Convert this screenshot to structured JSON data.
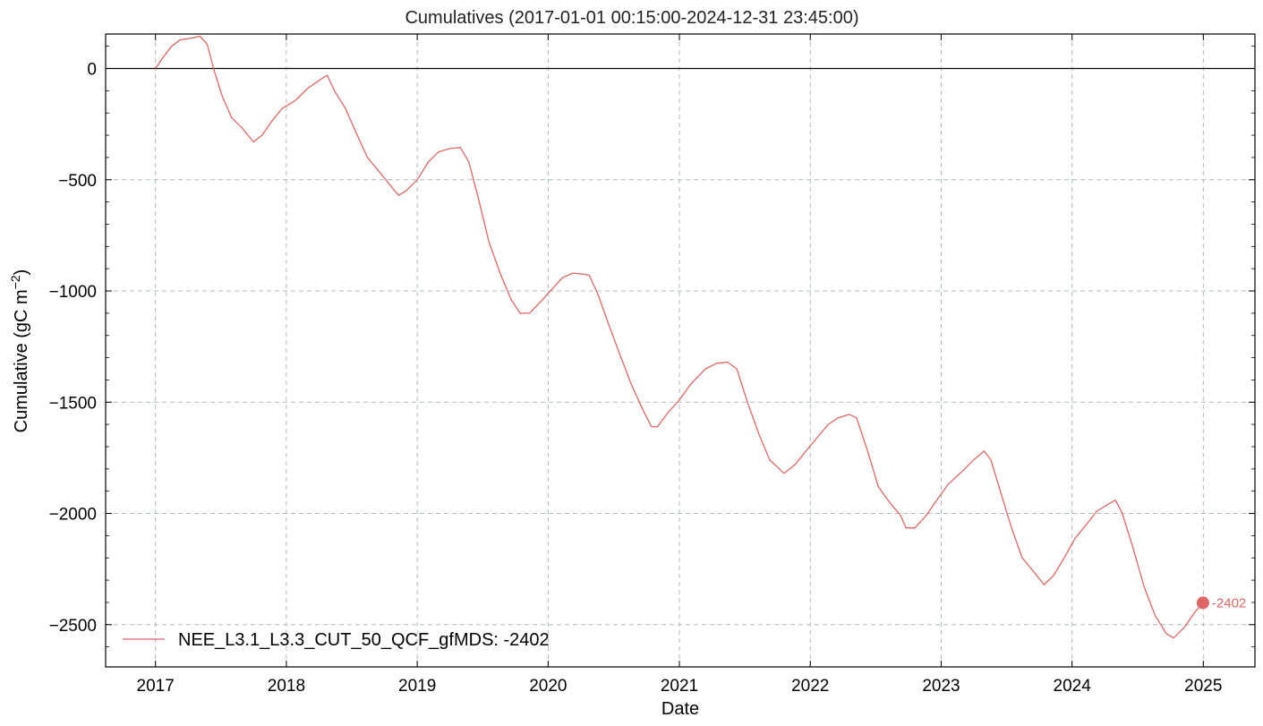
{
  "chart_data": {
    "type": "line",
    "title": "Cumulatives (2017-01-01 00:15:00-2024-12-31 23:45:00)",
    "xlabel": "Date",
    "ylabel": "Cumulative  (gC m",
    "ylabel_superscript": "−2",
    "ylabel_suffix": ")",
    "xlim": [
      "2016-08-15",
      "2025-05-25"
    ],
    "ylim": [
      -2690,
      155
    ],
    "x_ticks": [
      "2017",
      "2018",
      "2019",
      "2020",
      "2021",
      "2022",
      "2023",
      "2024",
      "2025"
    ],
    "y_ticks": [
      0,
      -500,
      -1000,
      -1500,
      -2000,
      -2500
    ],
    "y_tick_labels": [
      "0",
      "−500",
      "−1000",
      "−1500",
      "−2000",
      "−2500"
    ],
    "grid": true,
    "zero_line": true,
    "legend_position": "lower-left",
    "series": [
      {
        "name": "NEE_L3.1_L3.3_CUT_50_QCF_gfMDS",
        "color": "#e06666",
        "points": [
          [
            "2017-01-01",
            0
          ],
          [
            "2017-01-20",
            45
          ],
          [
            "2017-02-15",
            100
          ],
          [
            "2017-03-10",
            128
          ],
          [
            "2017-04-05",
            135
          ],
          [
            "2017-05-05",
            145
          ],
          [
            "2017-05-25",
            110
          ],
          [
            "2017-06-12",
            0
          ],
          [
            "2017-07-05",
            -120
          ],
          [
            "2017-08-01",
            -220
          ],
          [
            "2017-09-01",
            -270
          ],
          [
            "2017-10-01",
            -330
          ],
          [
            "2017-10-25",
            -300
          ],
          [
            "2017-11-20",
            -240
          ],
          [
            "2017-12-20",
            -180
          ],
          [
            "2018-01-25",
            -145
          ],
          [
            "2018-03-01",
            -90
          ],
          [
            "2018-04-01",
            -55
          ],
          [
            "2018-04-25",
            -30
          ],
          [
            "2018-05-15",
            -100
          ],
          [
            "2018-06-15",
            -180
          ],
          [
            "2018-07-15",
            -290
          ],
          [
            "2018-08-15",
            -400
          ],
          [
            "2018-09-20",
            -470
          ],
          [
            "2018-10-20",
            -530
          ],
          [
            "2018-11-10",
            -570
          ],
          [
            "2018-12-01",
            -550
          ],
          [
            "2019-01-01",
            -500
          ],
          [
            "2019-02-01",
            -420
          ],
          [
            "2019-03-01",
            -375
          ],
          [
            "2019-04-01",
            -360
          ],
          [
            "2019-05-01",
            -355
          ],
          [
            "2019-05-25",
            -420
          ],
          [
            "2019-06-20",
            -580
          ],
          [
            "2019-07-20",
            -780
          ],
          [
            "2019-08-20",
            -920
          ],
          [
            "2019-09-20",
            -1040
          ],
          [
            "2019-10-15",
            -1100
          ],
          [
            "2019-11-10",
            -1100
          ],
          [
            "2019-12-10",
            -1050
          ],
          [
            "2020-01-10",
            -995
          ],
          [
            "2020-02-10",
            -940
          ],
          [
            "2020-03-10",
            -920
          ],
          [
            "2020-04-10",
            -925
          ],
          [
            "2020-04-25",
            -930
          ],
          [
            "2020-05-20",
            -1020
          ],
          [
            "2020-06-20",
            -1160
          ],
          [
            "2020-07-20",
            -1290
          ],
          [
            "2020-08-20",
            -1420
          ],
          [
            "2020-09-20",
            -1530
          ],
          [
            "2020-10-15",
            -1610
          ],
          [
            "2020-11-01",
            -1610
          ],
          [
            "2020-12-01",
            -1545
          ],
          [
            "2021-01-01",
            -1490
          ],
          [
            "2021-02-01",
            -1420
          ],
          [
            "2021-03-15",
            -1350
          ],
          [
            "2021-04-15",
            -1325
          ],
          [
            "2021-05-15",
            -1320
          ],
          [
            "2021-06-10",
            -1350
          ],
          [
            "2021-07-10",
            -1500
          ],
          [
            "2021-08-10",
            -1640
          ],
          [
            "2021-09-10",
            -1760
          ],
          [
            "2021-10-20",
            -1820
          ],
          [
            "2021-11-20",
            -1780
          ],
          [
            "2021-12-20",
            -1720
          ],
          [
            "2022-01-20",
            -1660
          ],
          [
            "2022-02-20",
            -1600
          ],
          [
            "2022-03-20",
            -1570
          ],
          [
            "2022-04-20",
            -1555
          ],
          [
            "2022-05-10",
            -1570
          ],
          [
            "2022-06-10",
            -1720
          ],
          [
            "2022-07-10",
            -1880
          ],
          [
            "2022-08-10",
            -1950
          ],
          [
            "2022-09-10",
            -2010
          ],
          [
            "2022-09-25",
            -2065
          ],
          [
            "2022-10-20",
            -2065
          ],
          [
            "2022-11-20",
            -2010
          ],
          [
            "2022-12-20",
            -1940
          ],
          [
            "2023-01-20",
            -1870
          ],
          [
            "2023-03-01",
            -1810
          ],
          [
            "2023-04-01",
            -1760
          ],
          [
            "2023-05-01",
            -1720
          ],
          [
            "2023-05-20",
            -1760
          ],
          [
            "2023-06-15",
            -1900
          ],
          [
            "2023-07-15",
            -2060
          ],
          [
            "2023-08-15",
            -2200
          ],
          [
            "2023-09-15",
            -2260
          ],
          [
            "2023-10-15",
            -2320
          ],
          [
            "2023-11-10",
            -2280
          ],
          [
            "2023-12-10",
            -2200
          ],
          [
            "2024-01-10",
            -2110
          ],
          [
            "2024-02-10",
            -2050
          ],
          [
            "2024-03-10",
            -1990
          ],
          [
            "2024-04-10",
            -1960
          ],
          [
            "2024-05-01",
            -1940
          ],
          [
            "2024-05-20",
            -2000
          ],
          [
            "2024-06-20",
            -2160
          ],
          [
            "2024-07-20",
            -2330
          ],
          [
            "2024-08-20",
            -2460
          ],
          [
            "2024-09-20",
            -2540
          ],
          [
            "2024-10-10",
            -2560
          ],
          [
            "2024-11-10",
            -2510
          ],
          [
            "2024-12-10",
            -2440
          ],
          [
            "2024-12-31",
            -2402
          ]
        ]
      }
    ],
    "end_marker": {
      "date": "2024-12-31",
      "value": -2402,
      "label": "-2402"
    },
    "legend_entries": [
      {
        "label": "NEE_L3.1_L3.3_CUT_50_QCF_gfMDS: -2402",
        "color": "#e06666"
      }
    ]
  }
}
